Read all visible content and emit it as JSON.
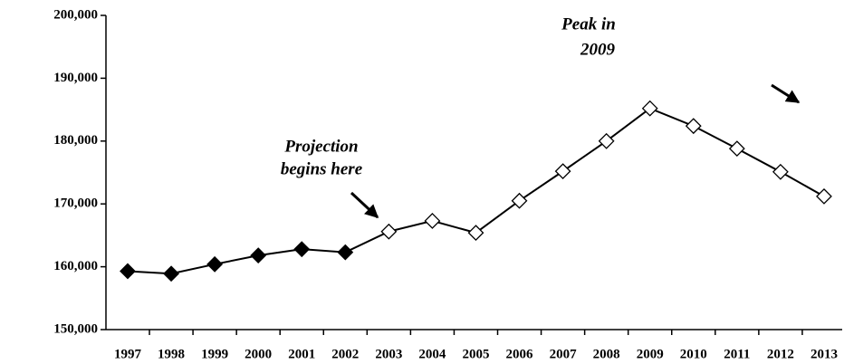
{
  "chart_data": {
    "type": "line",
    "categories": [
      "1997",
      "1998",
      "1999",
      "2000",
      "2001",
      "2002",
      "2003",
      "2004",
      "2005",
      "2006",
      "2007",
      "2008",
      "2009",
      "2010",
      "2011",
      "2012",
      "2013"
    ],
    "values": [
      159300,
      158900,
      160400,
      161800,
      162800,
      162300,
      165600,
      167300,
      165400,
      170500,
      175200,
      180000,
      185200,
      182400,
      178800,
      175100,
      171200
    ],
    "color": "#000000",
    "marker_colors": [
      "#000000",
      "#000000",
      "#000000",
      "#000000",
      "#000000",
      "#000000",
      "#ffffff",
      "#ffffff",
      "#ffffff",
      "#ffffff",
      "#ffffff",
      "#ffffff",
      "#ffffff",
      "#ffffff",
      "#ffffff",
      "#ffffff",
      "#ffffff"
    ],
    "ylim": [
      150000,
      200000
    ],
    "yticks": [
      {
        "value": 150000,
        "label": "150,000"
      },
      {
        "value": 160000,
        "label": "160,000"
      },
      {
        "value": 170000,
        "label": "170,000"
      },
      {
        "value": 180000,
        "label": "180,000"
      },
      {
        "value": 190000,
        "label": "190,000"
      },
      {
        "value": 200000,
        "label": "200,000"
      }
    ],
    "annotations": [
      {
        "lines": [
          "Projection",
          "begins here"
        ]
      },
      {
        "lines": [
          "Peak in",
          "2009"
        ]
      }
    ]
  }
}
